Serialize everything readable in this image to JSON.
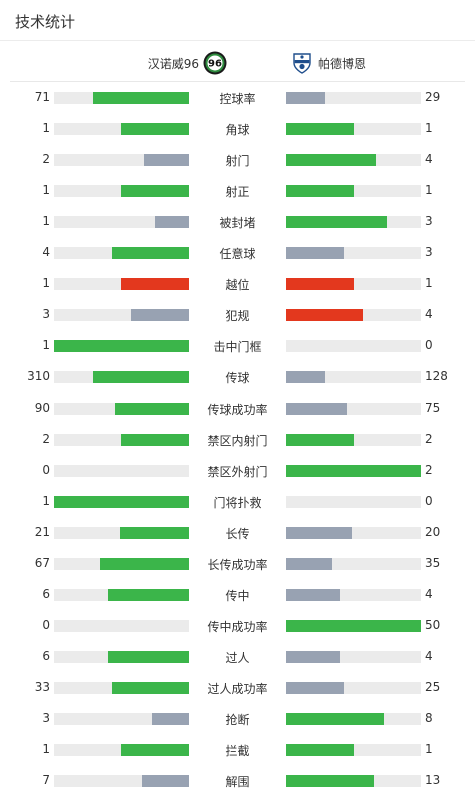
{
  "header": {
    "title": "技术统计"
  },
  "teams": {
    "home": {
      "name": "汉诺威96",
      "logo_icon": "hannover96-logo-icon"
    },
    "away": {
      "name": "帕德博恩",
      "logo_icon": "paderborn-logo-icon"
    }
  },
  "colors": {
    "green": "#3bb54a",
    "gray": "#98a2b2",
    "red": "#e3381e",
    "track": "#ebebeb"
  },
  "stats": [
    {
      "label": "控球率",
      "home": "71",
      "away": "29",
      "home_frac": 0.71,
      "away_frac": 0.29,
      "home_color": "green",
      "away_color": "gray"
    },
    {
      "label": "角球",
      "home": "1",
      "away": "1",
      "home_frac": 0.5,
      "away_frac": 0.5,
      "home_color": "green",
      "away_color": "green"
    },
    {
      "label": "射门",
      "home": "2",
      "away": "4",
      "home_frac": 0.333,
      "away_frac": 0.667,
      "home_color": "gray",
      "away_color": "green"
    },
    {
      "label": "射正",
      "home": "1",
      "away": "1",
      "home_frac": 0.5,
      "away_frac": 0.5,
      "home_color": "green",
      "away_color": "green"
    },
    {
      "label": "被封堵",
      "home": "1",
      "away": "3",
      "home_frac": 0.25,
      "away_frac": 0.75,
      "home_color": "gray",
      "away_color": "green"
    },
    {
      "label": "任意球",
      "home": "4",
      "away": "3",
      "home_frac": 0.571,
      "away_frac": 0.429,
      "home_color": "green",
      "away_color": "gray"
    },
    {
      "label": "越位",
      "home": "1",
      "away": "1",
      "home_frac": 0.5,
      "away_frac": 0.5,
      "home_color": "red",
      "away_color": "red"
    },
    {
      "label": "犯规",
      "home": "3",
      "away": "4",
      "home_frac": 0.429,
      "away_frac": 0.571,
      "home_color": "gray",
      "away_color": "red"
    },
    {
      "label": "击中门框",
      "home": "1",
      "away": "0",
      "home_frac": 1.0,
      "away_frac": 0.0,
      "home_color": "green",
      "away_color": "gray"
    },
    {
      "label": "传球",
      "home": "310",
      "away": "128",
      "home_frac": 0.708,
      "away_frac": 0.292,
      "home_color": "green",
      "away_color": "gray"
    },
    {
      "label": "传球成功率",
      "home": "90",
      "away": "75",
      "home_frac": 0.545,
      "away_frac": 0.455,
      "home_color": "green",
      "away_color": "gray"
    },
    {
      "label": "禁区内射门",
      "home": "2",
      "away": "2",
      "home_frac": 0.5,
      "away_frac": 0.5,
      "home_color": "green",
      "away_color": "green"
    },
    {
      "label": "禁区外射门",
      "home": "0",
      "away": "2",
      "home_frac": 0.0,
      "away_frac": 1.0,
      "home_color": "gray",
      "away_color": "green"
    },
    {
      "label": "门将扑救",
      "home": "1",
      "away": "0",
      "home_frac": 1.0,
      "away_frac": 0.0,
      "home_color": "green",
      "away_color": "gray"
    },
    {
      "label": "长传",
      "home": "21",
      "away": "20",
      "home_frac": 0.512,
      "away_frac": 0.488,
      "home_color": "green",
      "away_color": "gray"
    },
    {
      "label": "长传成功率",
      "home": "67",
      "away": "35",
      "home_frac": 0.657,
      "away_frac": 0.343,
      "home_color": "green",
      "away_color": "gray"
    },
    {
      "label": "传中",
      "home": "6",
      "away": "4",
      "home_frac": 0.6,
      "away_frac": 0.4,
      "home_color": "green",
      "away_color": "gray"
    },
    {
      "label": "传中成功率",
      "home": "0",
      "away": "50",
      "home_frac": 0.0,
      "away_frac": 1.0,
      "home_color": "gray",
      "away_color": "green"
    },
    {
      "label": "过人",
      "home": "6",
      "away": "4",
      "home_frac": 0.6,
      "away_frac": 0.4,
      "home_color": "green",
      "away_color": "gray"
    },
    {
      "label": "过人成功率",
      "home": "33",
      "away": "25",
      "home_frac": 0.569,
      "away_frac": 0.431,
      "home_color": "green",
      "away_color": "gray"
    },
    {
      "label": "抢断",
      "home": "3",
      "away": "8",
      "home_frac": 0.273,
      "away_frac": 0.727,
      "home_color": "gray",
      "away_color": "green"
    },
    {
      "label": "拦截",
      "home": "1",
      "away": "1",
      "home_frac": 0.5,
      "away_frac": 0.5,
      "home_color": "green",
      "away_color": "green"
    },
    {
      "label": "解围",
      "home": "7",
      "away": "13",
      "home_frac": 0.35,
      "away_frac": 0.65,
      "home_color": "gray",
      "away_color": "green"
    }
  ]
}
